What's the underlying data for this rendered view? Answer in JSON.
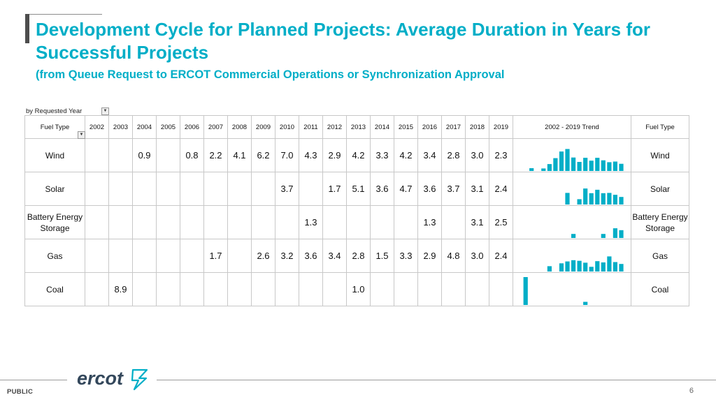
{
  "title": "Development Cycle for Planned Projects: Average Duration in Years for Successful Projects",
  "subtitle": "(from Queue Request to ERCOT Commercial Operations or Synchronization Approval",
  "filter_label": "by Requested Year",
  "footer": {
    "classification": "PUBLIC",
    "page_number": "6",
    "logo_text": "ercot"
  },
  "colors": {
    "accent": "#00aec7",
    "bar": "#00aec7",
    "grid": "#c8c8c8",
    "logo": "#33475b"
  },
  "chart_data": {
    "type": "table",
    "title": "Average Duration in Years for Successful Projects",
    "fuel_type_header": "Fuel Type",
    "trend_header": "2002 - 2019 Trend",
    "years": [
      "2002",
      "2003",
      "2004",
      "2005",
      "2006",
      "2007",
      "2008",
      "2009",
      "2010",
      "2011",
      "2012",
      "2013",
      "2014",
      "2015",
      "2016",
      "2017",
      "2018",
      "2019"
    ],
    "rows": [
      {
        "fuel": "Wind",
        "values": [
          "",
          "",
          "0.9",
          "",
          "0.8",
          "2.2",
          "4.1",
          "6.2",
          "7.0",
          "4.3",
          "2.9",
          "4.2",
          "3.3",
          "4.2",
          "3.4",
          "2.8",
          "3.0",
          "2.3"
        ]
      },
      {
        "fuel": "Solar",
        "values": [
          "",
          "",
          "",
          "",
          "",
          "",
          "",
          "",
          "3.7",
          "",
          "1.7",
          "5.1",
          "3.6",
          "4.7",
          "3.6",
          "3.7",
          "3.1",
          "2.4"
        ]
      },
      {
        "fuel": "Battery Energy Storage",
        "values": [
          "",
          "",
          "",
          "",
          "",
          "",
          "",
          "",
          "",
          "1.3",
          "",
          "",
          "",
          "",
          "1.3",
          "",
          "3.1",
          "2.5"
        ]
      },
      {
        "fuel": "Gas",
        "values": [
          "",
          "",
          "",
          "",
          "",
          "1.7",
          "",
          "2.6",
          "3.2",
          "3.6",
          "3.4",
          "2.8",
          "1.5",
          "3.3",
          "2.9",
          "4.8",
          "3.0",
          "2.4"
        ]
      },
      {
        "fuel": "Coal",
        "values": [
          "",
          "8.9",
          "",
          "",
          "",
          "",
          "",
          "",
          "",
          "",
          "",
          "1.0",
          "",
          "",
          "",
          "",
          "",
          ""
        ]
      }
    ]
  }
}
